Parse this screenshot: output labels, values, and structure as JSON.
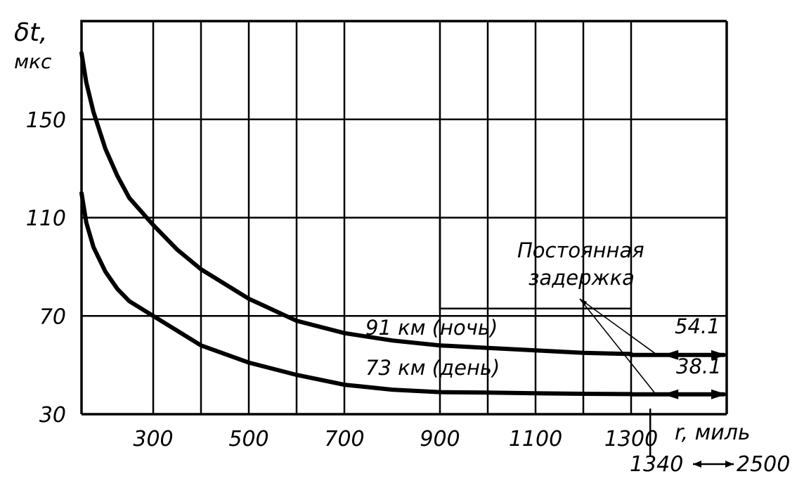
{
  "chart_data": {
    "type": "line",
    "ylabel": "δt,",
    "yunit": "мкс",
    "xlabel": "r, миль",
    "x_ticks": [
      300,
      500,
      700,
      900,
      1100,
      1300
    ],
    "y_ticks": [
      30,
      70,
      110,
      150
    ],
    "xlim": [
      150,
      1500
    ],
    "ylim": [
      30,
      190
    ],
    "grid": true,
    "series": [
      {
        "name": "91 км (ночь)",
        "x": [
          150,
          160,
          175,
          200,
          225,
          250,
          300,
          350,
          400,
          500,
          600,
          700,
          800,
          900,
          1000,
          1100,
          1200,
          1300
        ],
        "y": [
          177,
          165,
          153,
          138,
          127,
          118,
          107,
          97,
          89,
          77,
          68,
          63,
          60,
          58,
          57,
          56,
          55,
          54.5
        ],
        "constant_value": 54.1
      },
      {
        "name": "73 км (день)",
        "x": [
          150,
          160,
          175,
          200,
          225,
          250,
          300,
          350,
          400,
          500,
          600,
          700,
          800,
          900,
          1000,
          1100,
          1200,
          1300
        ],
        "y": [
          120,
          108,
          98,
          88,
          81,
          76,
          70,
          64,
          58,
          51,
          46,
          42,
          40,
          39,
          38.8,
          38.5,
          38.3,
          38.2
        ],
        "constant_value": 38.1
      }
    ],
    "annotations": {
      "constant_label": [
        "Постоянная",
        "задержка"
      ],
      "value_night": "54.1",
      "value_day": "38.1",
      "range_start": "1340",
      "range_end": "2500"
    }
  }
}
